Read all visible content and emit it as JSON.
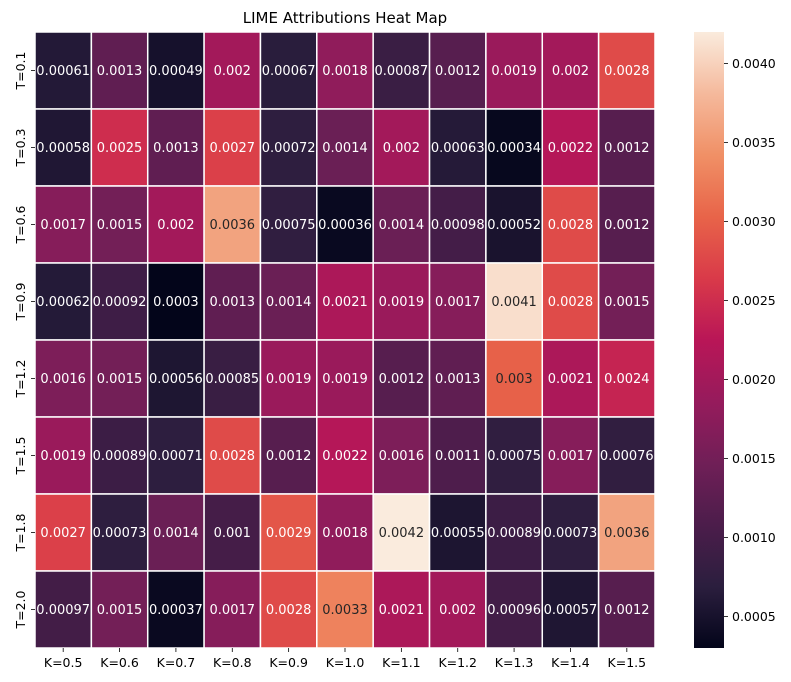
{
  "chart_data": {
    "type": "heatmap",
    "title": "LIME Attributions Heat Map",
    "x_labels": [
      "K=0.5",
      "K=0.6",
      "K=0.7",
      "K=0.8",
      "K=0.9",
      "K=1.0",
      "K=1.1",
      "K=1.2",
      "K=1.3",
      "K=1.4",
      "K=1.5"
    ],
    "y_labels": [
      "T=0.1",
      "T=0.3",
      "T=0.6",
      "T=0.9",
      "T=1.2",
      "T=1.5",
      "T=1.8",
      "T=2.0"
    ],
    "values": [
      [
        0.00061,
        0.0013,
        0.00049,
        0.002,
        0.00067,
        0.0018,
        0.00087,
        0.0012,
        0.0019,
        0.002,
        0.0028
      ],
      [
        0.00058,
        0.0025,
        0.0013,
        0.0027,
        0.00072,
        0.0014,
        0.002,
        0.00063,
        0.00034,
        0.0022,
        0.0012
      ],
      [
        0.0017,
        0.0015,
        0.002,
        0.0036,
        0.00075,
        0.00036,
        0.0014,
        0.00098,
        0.00052,
        0.0028,
        0.0012
      ],
      [
        0.00062,
        0.00092,
        0.0003,
        0.0013,
        0.0014,
        0.0021,
        0.0019,
        0.0017,
        0.0041,
        0.0028,
        0.0015
      ],
      [
        0.0016,
        0.0015,
        0.00056,
        0.00085,
        0.0019,
        0.0019,
        0.0012,
        0.0013,
        0.003,
        0.0021,
        0.0024
      ],
      [
        0.0019,
        0.00089,
        0.00071,
        0.0028,
        0.0012,
        0.0022,
        0.0016,
        0.0011,
        0.00075,
        0.0017,
        0.00076
      ],
      [
        0.0027,
        0.00073,
        0.0014,
        0.001,
        0.0029,
        0.0018,
        0.0042,
        0.00055,
        0.00089,
        0.00073,
        0.0036
      ],
      [
        0.00097,
        0.0015,
        0.00037,
        0.0017,
        0.0028,
        0.0033,
        0.0021,
        0.002,
        0.00096,
        0.00057,
        0.0012
      ]
    ],
    "labels": [
      [
        "0.00061",
        "0.0013",
        "0.00049",
        "0.002",
        "0.00067",
        "0.0018",
        "0.00087",
        "0.0012",
        "0.0019",
        "0.002",
        "0.0028"
      ],
      [
        "0.00058",
        "0.0025",
        "0.0013",
        "0.0027",
        "0.00072",
        "0.0014",
        "0.002",
        "0.00063",
        "0.00034",
        "0.0022",
        "0.0012"
      ],
      [
        "0.0017",
        "0.0015",
        "0.002",
        "0.0036",
        "0.00075",
        "0.00036",
        "0.0014",
        "0.00098",
        "0.00052",
        "0.0028",
        "0.0012"
      ],
      [
        "0.00062",
        "0.00092",
        "0.0003",
        "0.0013",
        "0.0014",
        "0.0021",
        "0.0019",
        "0.0017",
        "0.0041",
        "0.0028",
        "0.0015"
      ],
      [
        "0.0016",
        "0.0015",
        "0.00056",
        "0.00085",
        "0.0019",
        "0.0019",
        "0.0012",
        "0.0013",
        "0.003",
        "0.0021",
        "0.0024"
      ],
      [
        "0.0019",
        "0.00089",
        "0.00071",
        "0.0028",
        "0.0012",
        "0.0022",
        "0.0016",
        "0.0011",
        "0.00075",
        "0.0017",
        "0.00076"
      ],
      [
        "0.0027",
        "0.00073",
        "0.0014",
        "0.001",
        "0.0029",
        "0.0018",
        "0.0042",
        "0.00055",
        "0.00089",
        "0.00073",
        "0.0036"
      ],
      [
        "0.00097",
        "0.0015",
        "0.00037",
        "0.0017",
        "0.0028",
        "0.0033",
        "0.0021",
        "0.002",
        "0.00096",
        "0.00057",
        "0.0012"
      ]
    ],
    "colorbar": {
      "vmin": 0.0003,
      "vmax": 0.0042,
      "ticks": [
        0.0005,
        0.001,
        0.0015,
        0.002,
        0.0025,
        0.003,
        0.0035,
        0.004
      ],
      "tick_labels": [
        "0.0005",
        "0.0010",
        "0.0015",
        "0.0020",
        "0.0025",
        "0.0030",
        "0.0035",
        "0.0040"
      ],
      "placement": "right"
    },
    "colormap": "rocket",
    "colormap_stops": [
      "#03051a",
      "#2b1e3e",
      "#4c1d4b",
      "#701f57",
      "#961b5c",
      "#b91657",
      "#d93a49",
      "#e86449",
      "#f09066",
      "#f5b99c",
      "#faebdd"
    ],
    "grid_line_color": "#ffffff"
  }
}
